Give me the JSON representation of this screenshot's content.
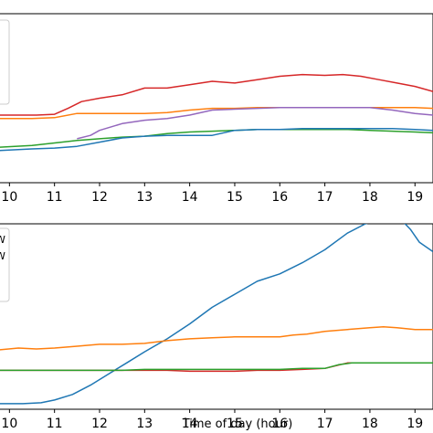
{
  "chart_data": [
    {
      "type": "line",
      "title": "",
      "xlabel": "",
      "ylabel": "",
      "xlim": [
        9.77,
        19.4
      ],
      "ylim": [
        0,
        100
      ],
      "grid": false,
      "legend": "top-left",
      "x_ticks": [
        "10",
        "11",
        "12",
        "13",
        "14",
        "15",
        "16",
        "17",
        "18",
        "19"
      ],
      "series": [
        {
          "color": "#d62728",
          "x": [
            9.77,
            10.2,
            10.6,
            11.0,
            11.3,
            11.6,
            12.0,
            12.5,
            13.0,
            13.5,
            14.0,
            14.5,
            15.0,
            15.5,
            16.0,
            16.5,
            17.0,
            17.4,
            17.8,
            18.2,
            18.6,
            19.0,
            19.4
          ],
          "y": [
            40,
            40,
            40,
            40.5,
            44,
            48,
            50,
            52,
            56,
            56,
            58,
            60,
            59,
            61,
            63,
            64,
            63.5,
            64,
            63,
            61,
            59,
            57,
            54
          ]
        },
        {
          "color": "#ff7f0e",
          "x": [
            9.77,
            10.5,
            11.0,
            11.5,
            12.0,
            12.5,
            13.0,
            13.5,
            14.0,
            14.5,
            15.0,
            15.5,
            16.0,
            16.5,
            17.0,
            17.5,
            18.0,
            18.5,
            19.0,
            19.4
          ],
          "y": [
            38,
            38,
            38.5,
            41,
            41,
            41,
            41,
            41.5,
            43,
            44,
            44,
            44.5,
            44.5,
            44.5,
            44.5,
            44.5,
            44.5,
            44.5,
            44.5,
            44
          ]
        },
        {
          "color": "#9467bd",
          "x": [
            11.5,
            11.8,
            12.0,
            12.5,
            13.0,
            13.5,
            14.0,
            14.5,
            15.0,
            15.5,
            16.0,
            16.5,
            17.0,
            17.5,
            18.0,
            18.5,
            19.0,
            19.4
          ],
          "y": [
            26,
            28,
            31,
            35,
            37,
            38,
            40,
            43,
            43.5,
            44,
            44.5,
            44.5,
            44.5,
            44.5,
            44.5,
            43,
            41,
            40
          ]
        },
        {
          "color": "#2ca02c",
          "x": [
            9.77,
            10.5,
            11.0,
            11.5,
            12.0,
            12.5,
            13.0,
            13.5,
            14.0,
            14.5,
            15.0,
            15.5,
            16.0,
            16.5,
            17.0,
            17.5,
            18.0,
            18.5,
            19.0,
            19.4
          ],
          "y": [
            21,
            22,
            23.5,
            25,
            26,
            27,
            27.5,
            29,
            30,
            30.5,
            31,
            31.5,
            31.5,
            31.5,
            31.5,
            31.5,
            31,
            30.5,
            30,
            29.5
          ]
        },
        {
          "color": "#1f77b4",
          "x": [
            9.77,
            10.5,
            11.0,
            11.5,
            12.0,
            12.5,
            13.0,
            13.5,
            14.0,
            14.5,
            15.0,
            15.5,
            16.0,
            16.5,
            17.0,
            17.5,
            18.0,
            18.5,
            19.0,
            19.4
          ],
          "y": [
            19,
            20,
            20.5,
            21.5,
            24,
            26.5,
            27.5,
            28,
            28,
            28,
            31,
            31.5,
            31.5,
            32,
            32,
            32,
            32,
            32,
            31.5,
            31
          ]
        }
      ]
    },
    {
      "type": "line",
      "title": "",
      "xlabel": "Time of day (hour)",
      "ylabel": "",
      "xlim": [
        9.77,
        19.4
      ],
      "ylim": [
        0,
        100
      ],
      "grid": false,
      "legend": "top-left",
      "legend_entries": [
        "W",
        "W"
      ],
      "x_ticks": [
        "10",
        "11",
        "12",
        "13",
        "14",
        "15",
        "16",
        "17",
        "18",
        "19"
      ],
      "series": [
        {
          "color": "#1f77b4",
          "x": [
            9.77,
            10.3,
            10.7,
            11.0,
            11.4,
            11.8,
            12.2,
            12.6,
            13.0,
            13.5,
            14.0,
            14.5,
            15.0,
            15.5,
            16.0,
            16.5,
            17.0,
            17.5,
            17.9,
            18.2,
            18.5,
            18.7,
            18.9,
            19.1,
            19.4
          ],
          "y": [
            3,
            3,
            3.5,
            5,
            8,
            13,
            19,
            25,
            31,
            38,
            46,
            55,
            62,
            69,
            73,
            79,
            86,
            95,
            100,
            102,
            103,
            102,
            97,
            90,
            85
          ]
        },
        {
          "color": "#ff7f0e",
          "x": [
            9.77,
            10.2,
            10.6,
            11.0,
            11.5,
            12.0,
            12.5,
            13.0,
            13.5,
            14.0,
            14.5,
            15.0,
            15.5,
            16.0,
            16.3,
            16.6,
            17.0,
            17.5,
            18.0,
            18.3,
            18.6,
            19.0,
            19.4
          ],
          "y": [
            32,
            33,
            32.5,
            33,
            34,
            35,
            35,
            35.5,
            37,
            38,
            38.5,
            39,
            39,
            39,
            40,
            40.5,
            42,
            43,
            44,
            44.5,
            44,
            43,
            43
          ]
        },
        {
          "color": "#d62728",
          "x": [
            9.77,
            10.5,
            11.0,
            11.5,
            12.0,
            12.5,
            13.0,
            13.5,
            14.0,
            14.5,
            15.0,
            15.5,
            16.0,
            16.5,
            17.0,
            17.5,
            18.0,
            18.5,
            19.0,
            19.4
          ],
          "y": [
            21,
            21,
            21,
            21,
            21,
            21,
            21,
            21,
            20.5,
            20.5,
            20.5,
            21,
            21,
            21.5,
            22,
            25,
            25,
            25,
            25,
            25
          ]
        },
        {
          "color": "#2ca02c",
          "x": [
            9.77,
            10.5,
            11.0,
            11.5,
            12.0,
            12.5,
            13.0,
            13.5,
            14.0,
            14.5,
            15.0,
            15.5,
            16.0,
            16.5,
            17.0,
            17.3,
            17.6,
            18.0,
            18.5,
            19.0,
            19.4
          ],
          "y": [
            21,
            21,
            21,
            21,
            21,
            21,
            21.5,
            21.5,
            21.5,
            21.5,
            21.5,
            21.5,
            21.5,
            22,
            22,
            24,
            25,
            25,
            25,
            25,
            25
          ]
        }
      ]
    }
  ]
}
